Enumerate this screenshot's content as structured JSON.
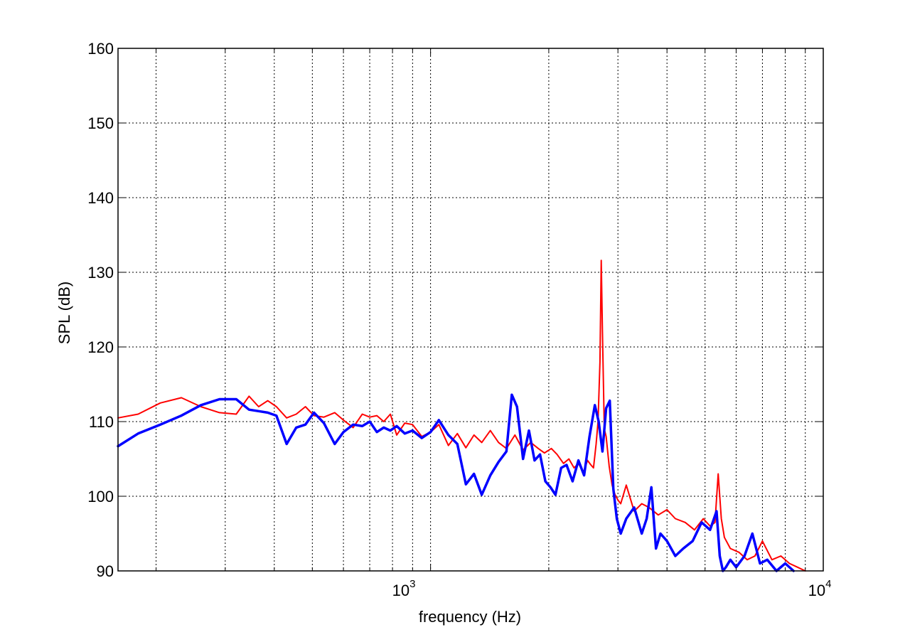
{
  "chart_data": {
    "type": "line",
    "title": "",
    "xlabel": "frequency  (Hz)",
    "ylabel": "SPL   (dB)",
    "xscale": "log",
    "xlim": [
      160,
      10000
    ],
    "ylim": [
      90,
      160
    ],
    "grid": true,
    "y_ticks": [
      90,
      100,
      110,
      120,
      130,
      140,
      150,
      160
    ],
    "x_tick_labels": [
      {
        "base": "10",
        "exp": "3",
        "value": 1000
      },
      {
        "base": "10",
        "exp": "4",
        "value": 10000
      }
    ],
    "series": [
      {
        "color": "#ff0000",
        "line_width": 2,
        "x": [
          160,
          180,
          205,
          232,
          260,
          290,
          320,
          345,
          365,
          385,
          405,
          430,
          455,
          480,
          505,
          535,
          570,
          600,
          635,
          670,
          700,
          730,
          760,
          790,
          820,
          860,
          900,
          950,
          1000,
          1050,
          1110,
          1170,
          1230,
          1290,
          1350,
          1420,
          1490,
          1560,
          1640,
          1720,
          1800,
          1880,
          1950,
          2030,
          2100,
          2180,
          2250,
          2320,
          2380,
          2450,
          2510,
          2560,
          2600,
          2640,
          2670,
          2700,
          2720,
          2740,
          2770,
          2800,
          2850,
          2900,
          2950,
          3000,
          3050,
          3150,
          3300,
          3450,
          3600,
          3800,
          4000,
          4200,
          4450,
          4700,
          4950,
          5150,
          5300,
          5400,
          5500,
          5600,
          5800,
          6100,
          6400,
          6700,
          7000,
          7400,
          7800,
          8200,
          8600,
          9000
        ],
        "values": [
          110.5,
          111,
          112.5,
          113.2,
          112,
          111.2,
          111,
          113.4,
          112,
          112.8,
          112,
          110.5,
          111,
          112,
          110.8,
          110.6,
          111.2,
          110.2,
          109.2,
          111,
          110.6,
          110.8,
          110,
          111,
          108.2,
          109.8,
          109.6,
          108,
          108.6,
          109.6,
          106.8,
          108.4,
          106.5,
          108.2,
          107.2,
          108.8,
          107.2,
          106.4,
          108.2,
          106.2,
          107.2,
          106.4,
          105.8,
          106.4,
          105.6,
          104.4,
          105,
          103.8,
          104.4,
          103.2,
          104.8,
          104.2,
          103.8,
          107,
          110,
          118,
          131.6,
          122,
          109,
          108,
          104,
          101.5,
          100.2,
          99.5,
          99,
          101.5,
          98,
          99,
          98.5,
          97.5,
          98.2,
          97,
          96.5,
          95.5,
          97,
          96,
          96.5,
          103,
          97,
          94.5,
          93,
          92.5,
          91.5,
          92,
          94,
          91.5,
          92,
          91,
          90.5,
          90
        ]
      },
      {
        "color": "#0000ff",
        "line_width": 3.5,
        "x": [
          160,
          180,
          205,
          232,
          260,
          290,
          320,
          345,
          365,
          385,
          405,
          430,
          455,
          480,
          505,
          535,
          570,
          600,
          635,
          670,
          700,
          730,
          760,
          790,
          820,
          860,
          900,
          950,
          1000,
          1050,
          1110,
          1170,
          1230,
          1290,
          1350,
          1420,
          1490,
          1560,
          1610,
          1660,
          1720,
          1780,
          1840,
          1900,
          1960,
          2020,
          2080,
          2150,
          2220,
          2300,
          2380,
          2460,
          2540,
          2620,
          2680,
          2740,
          2800,
          2860,
          2920,
          2980,
          3050,
          3150,
          3300,
          3450,
          3550,
          3650,
          3750,
          3850,
          4000,
          4200,
          4400,
          4650,
          4900,
          5150,
          5350,
          5450,
          5550,
          5650,
          5800,
          6000,
          6300,
          6600,
          6900,
          7200,
          7600,
          8000,
          8400
        ],
        "values": [
          106.7,
          108.4,
          109.6,
          110.8,
          112.2,
          113,
          113,
          111.6,
          111.4,
          111.2,
          110.8,
          107,
          109.2,
          109.6,
          111.2,
          109.8,
          107,
          108.6,
          109.6,
          109.4,
          110,
          108.6,
          109.2,
          108.8,
          109.4,
          108.4,
          108.8,
          107.8,
          108.6,
          110.2,
          108.2,
          107,
          101.6,
          103,
          100.2,
          102.8,
          104.6,
          106,
          113.6,
          112,
          105,
          108.8,
          104.8,
          105.6,
          102,
          101.2,
          100.2,
          103.8,
          104.2,
          102,
          104.8,
          102.8,
          108,
          112.2,
          110,
          106,
          111.8,
          112.8,
          101,
          97,
          95,
          97,
          98.5,
          95,
          97,
          101.2,
          93,
          95,
          94,
          92,
          93,
          94,
          96.5,
          95.5,
          98,
          92,
          90,
          90.5,
          91.5,
          90.5,
          92,
          95,
          91,
          91.5,
          90,
          91,
          90
        ]
      }
    ]
  }
}
